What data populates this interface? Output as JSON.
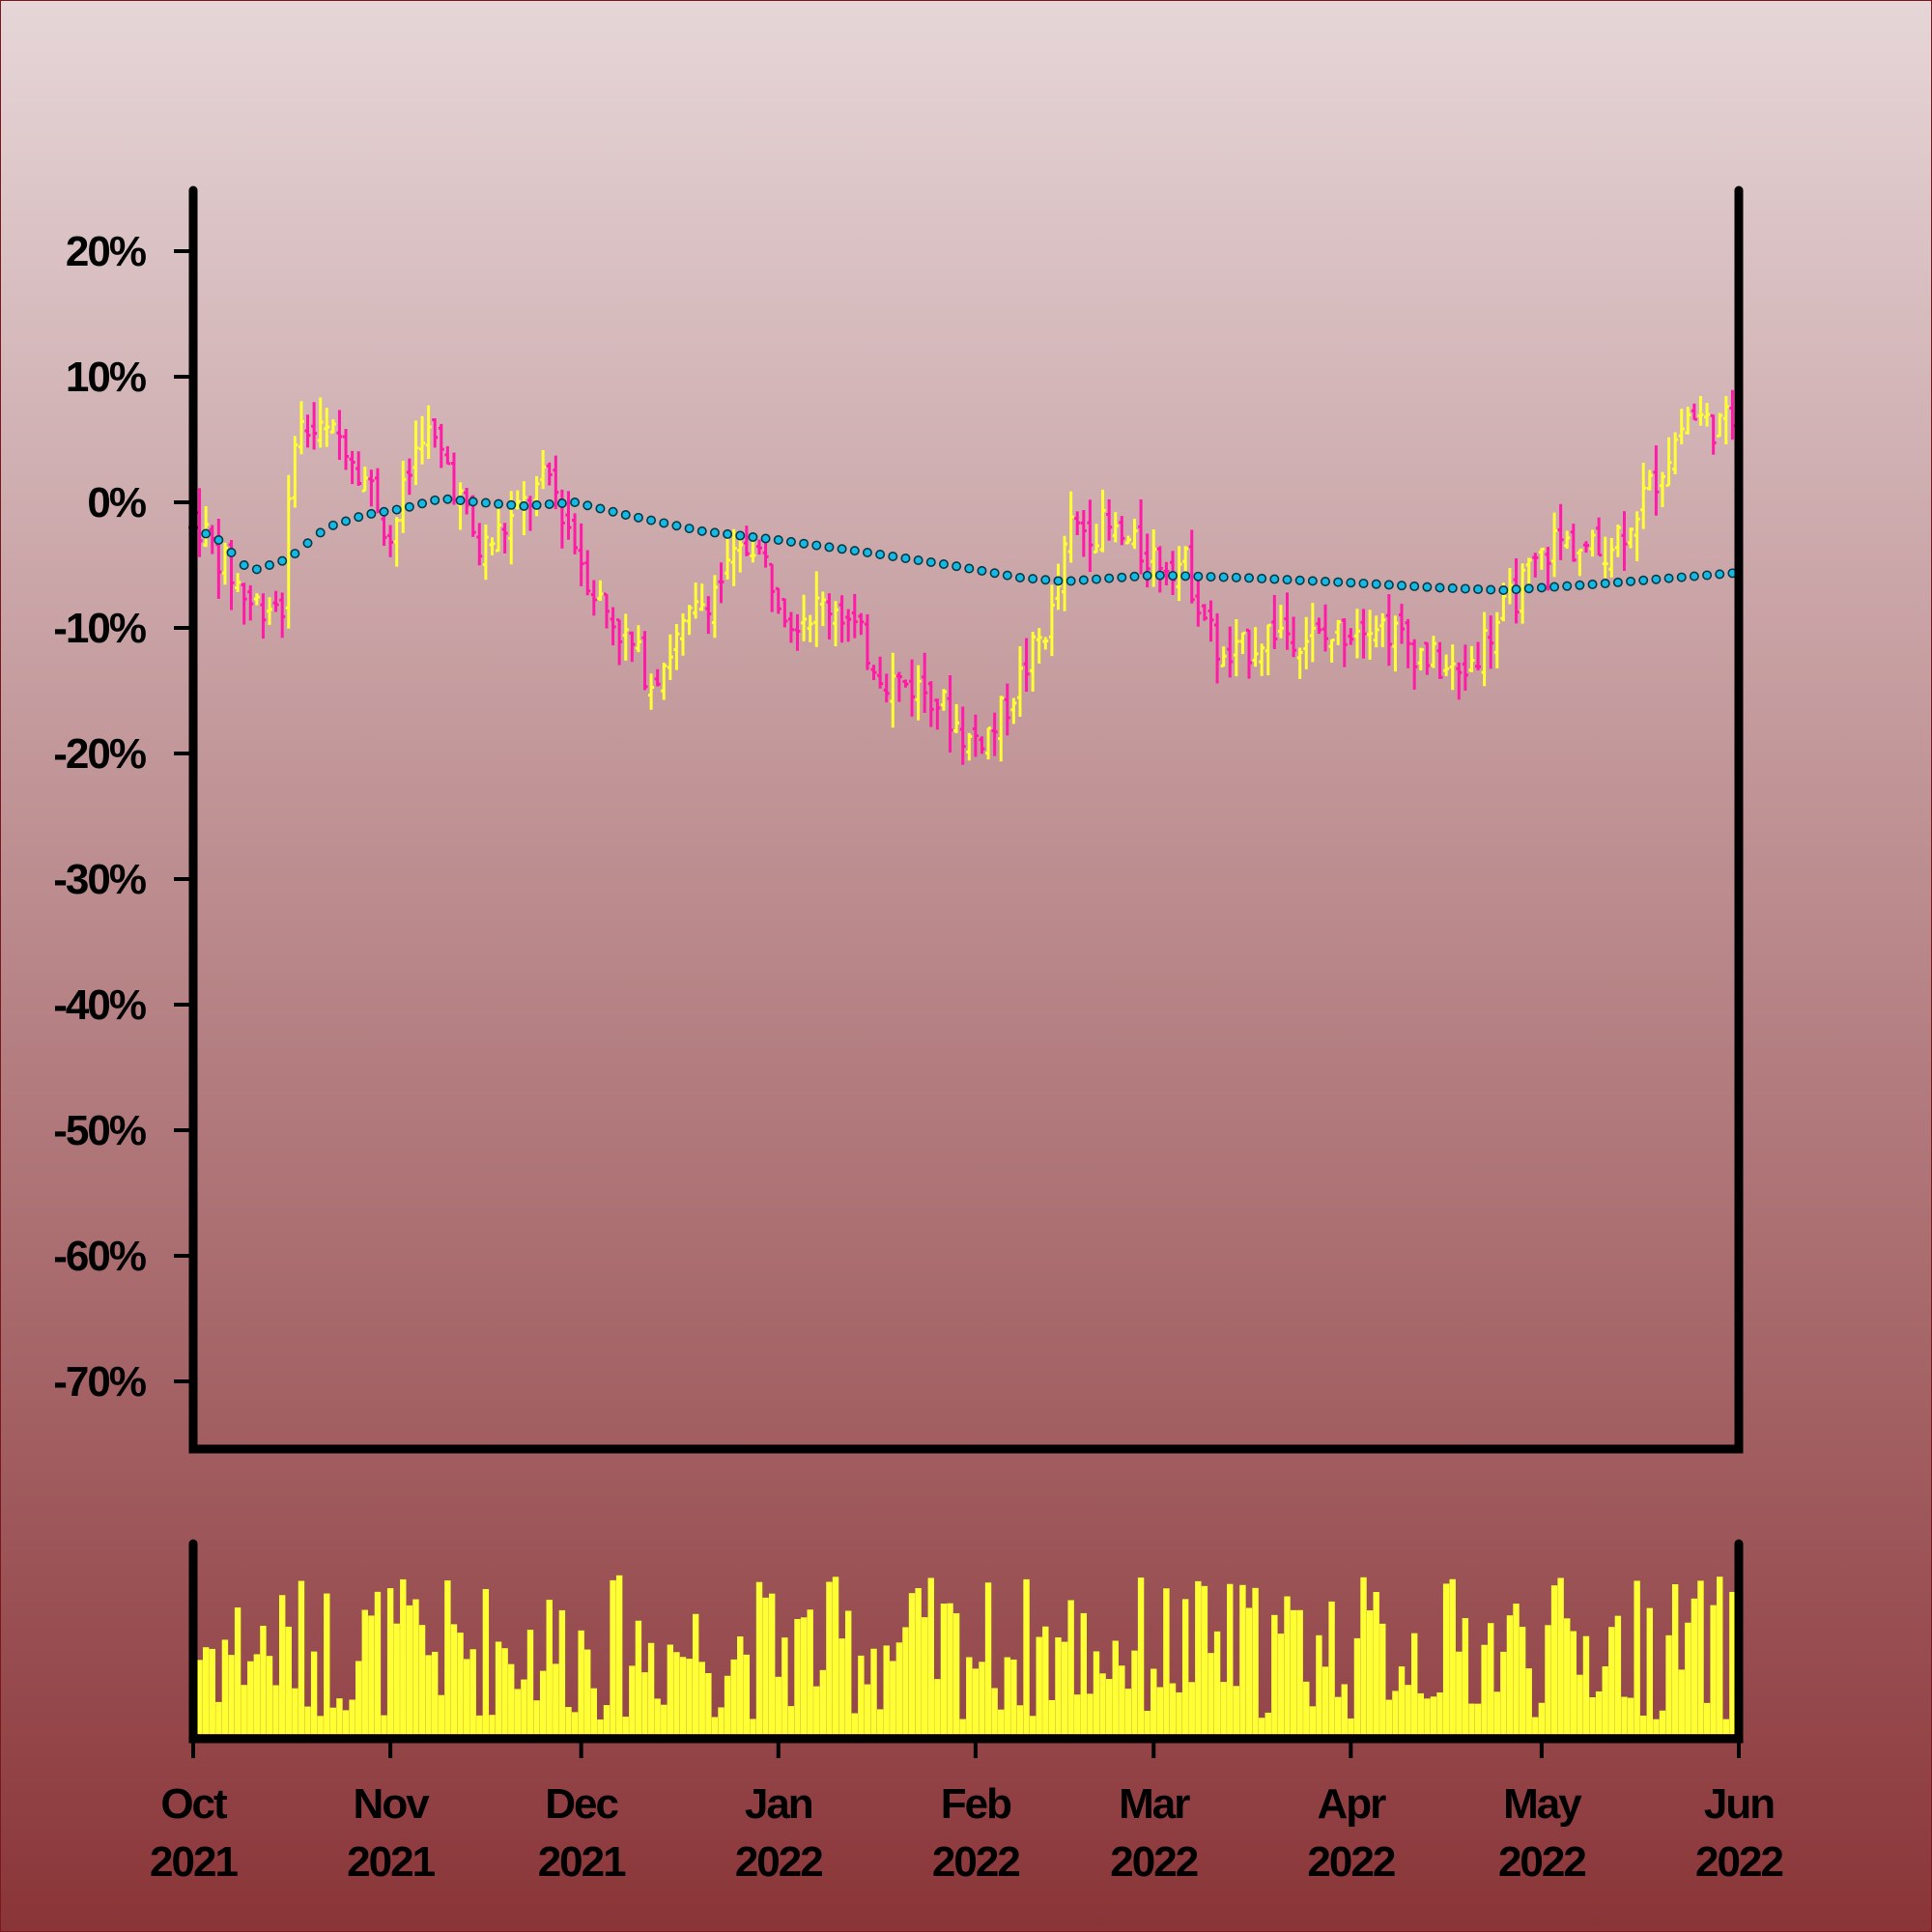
{
  "chart_data": {
    "type": "ohlc",
    "title": "",
    "xlabel": "",
    "ylabel": "",
    "y_axis": {
      "unit": "%",
      "ticks": [
        20,
        10,
        0,
        -10,
        -20,
        -30,
        -40,
        -50,
        -60,
        -70
      ],
      "tick_labels": [
        "20%",
        "10%",
        "0%",
        "-10%",
        "-20%",
        "-30%",
        "-40%",
        "-50%",
        "-60%",
        "-70%"
      ],
      "ylim": [
        -75,
        25
      ]
    },
    "x_axis": {
      "start": "2021-10-01",
      "end": "2022-06-01",
      "ticks": [
        {
          "month": "Oct",
          "year": "2021",
          "date": "2021-10-01"
        },
        {
          "month": "Nov",
          "year": "2021",
          "date": "2021-11-01"
        },
        {
          "month": "Dec",
          "year": "2021",
          "date": "2021-12-01"
        },
        {
          "month": "Jan",
          "year": "2022",
          "date": "2022-01-01"
        },
        {
          "month": "Feb",
          "year": "2022",
          "date": "2022-02-01"
        },
        {
          "month": "Mar",
          "year": "2022",
          "date": "2022-03-01"
        },
        {
          "month": "Apr",
          "year": "2022",
          "date": "2022-04-01"
        },
        {
          "month": "May",
          "year": "2022",
          "date": "2022-05-01"
        },
        {
          "month": "Jun",
          "year": "2022",
          "date": "2022-06-01"
        }
      ]
    },
    "price_path": [
      {
        "date": "2021-10-01",
        "value": -1
      },
      {
        "date": "2021-10-06",
        "value": -5
      },
      {
        "date": "2021-10-10",
        "value": -8
      },
      {
        "date": "2021-10-15",
        "value": -8
      },
      {
        "date": "2021-10-17",
        "value": 6
      },
      {
        "date": "2021-10-25",
        "value": 5
      },
      {
        "date": "2021-10-30",
        "value": 0
      },
      {
        "date": "2021-11-01",
        "value": -3
      },
      {
        "date": "2021-11-06",
        "value": 6
      },
      {
        "date": "2021-11-10",
        "value": 3
      },
      {
        "date": "2021-11-15",
        "value": -4
      },
      {
        "date": "2021-11-19",
        "value": -2
      },
      {
        "date": "2021-11-26",
        "value": 2
      },
      {
        "date": "2021-12-03",
        "value": -7
      },
      {
        "date": "2021-12-12",
        "value": -14
      },
      {
        "date": "2021-12-20",
        "value": -8
      },
      {
        "date": "2021-12-28",
        "value": -3
      },
      {
        "date": "2022-01-03",
        "value": -9
      },
      {
        "date": "2022-01-10",
        "value": -8
      },
      {
        "date": "2022-01-18",
        "value": -14
      },
      {
        "date": "2022-01-25",
        "value": -15
      },
      {
        "date": "2022-01-31",
        "value": -19
      },
      {
        "date": "2022-02-04",
        "value": -18
      },
      {
        "date": "2022-02-08",
        "value": -14
      },
      {
        "date": "2022-02-13",
        "value": -9
      },
      {
        "date": "2022-02-16",
        "value": -2
      },
      {
        "date": "2022-02-21",
        "value": -2
      },
      {
        "date": "2022-02-27",
        "value": -4
      },
      {
        "date": "2022-03-06",
        "value": -5
      },
      {
        "date": "2022-03-12",
        "value": -13
      },
      {
        "date": "2022-03-20",
        "value": -10
      },
      {
        "date": "2022-03-28",
        "value": -11
      },
      {
        "date": "2022-04-04",
        "value": -9
      },
      {
        "date": "2022-04-12",
        "value": -12
      },
      {
        "date": "2022-04-18",
        "value": -14
      },
      {
        "date": "2022-04-26",
        "value": -8
      },
      {
        "date": "2022-05-03",
        "value": -3
      },
      {
        "date": "2022-05-10",
        "value": -4
      },
      {
        "date": "2022-05-14",
        "value": -2
      },
      {
        "date": "2022-05-19",
        "value": 2
      },
      {
        "date": "2022-05-24",
        "value": 7
      },
      {
        "date": "2022-05-29",
        "value": 6
      },
      {
        "date": "2022-06-01",
        "value": 7
      }
    ],
    "moving_average": [
      {
        "date": "2021-10-01",
        "value": -2
      },
      {
        "date": "2021-10-05",
        "value": -3
      },
      {
        "date": "2021-10-10",
        "value": -5.5
      },
      {
        "date": "2021-10-16",
        "value": -4.5
      },
      {
        "date": "2021-10-22",
        "value": -2
      },
      {
        "date": "2021-10-28",
        "value": -1
      },
      {
        "date": "2021-11-03",
        "value": -0.5
      },
      {
        "date": "2021-11-09",
        "value": 0.3
      },
      {
        "date": "2021-11-15",
        "value": 0
      },
      {
        "date": "2021-11-22",
        "value": -0.3
      },
      {
        "date": "2021-11-30",
        "value": 0
      },
      {
        "date": "2021-12-08",
        "value": -1
      },
      {
        "date": "2021-12-20",
        "value": -2.3
      },
      {
        "date": "2022-01-01",
        "value": -3
      },
      {
        "date": "2022-01-15",
        "value": -4
      },
      {
        "date": "2022-01-28",
        "value": -5
      },
      {
        "date": "2022-02-08",
        "value": -6
      },
      {
        "date": "2022-02-15",
        "value": -6.3
      },
      {
        "date": "2022-03-01",
        "value": -5.8
      },
      {
        "date": "2022-03-15",
        "value": -6
      },
      {
        "date": "2022-04-01",
        "value": -6.4
      },
      {
        "date": "2022-04-15",
        "value": -6.8
      },
      {
        "date": "2022-04-25",
        "value": -7
      },
      {
        "date": "2022-05-10",
        "value": -6.5
      },
      {
        "date": "2022-06-01",
        "value": -5.6
      }
    ],
    "grid": false,
    "legend": "none",
    "colors": {
      "up": "#ffff33",
      "down": "#ff1aa8",
      "moving_average_fill": "#16b8e6",
      "moving_average_stroke": "#083a44",
      "volume": "#ffff33",
      "axis": "#000000",
      "background_top": "#e6d6d8",
      "background_bottom": "#8a3538"
    }
  }
}
